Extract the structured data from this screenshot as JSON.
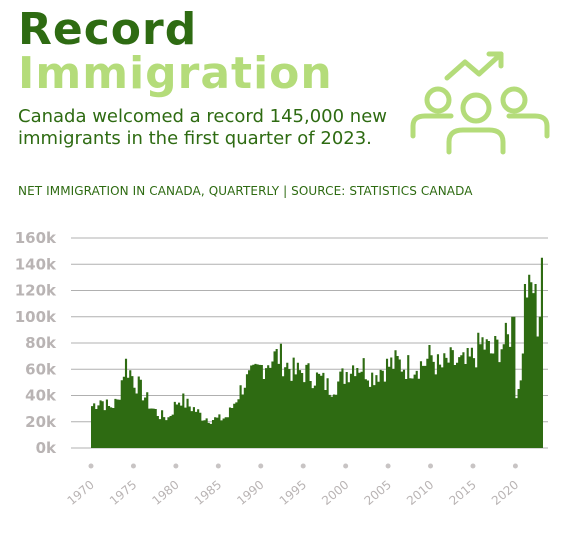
{
  "header": {
    "title_line1": "Record",
    "title_line2": "Immigration",
    "subtitle": "Canada welcomed a record 145,000 new immigrants in the first quarter of 2023.",
    "source": "NET IMMIGRATION IN CANADA, QUARTERLY | SOURCE: STATISTICS CANADA",
    "icon": "people-growth-icon"
  },
  "colors": {
    "title_dark": "#2e6b12",
    "title_light": "#b4dc7a",
    "area": "#2e6b12",
    "axis_text": "#b9b4b4",
    "grid": "#b0b0b0"
  },
  "chart_data": {
    "type": "area",
    "title": "",
    "xlabel": "",
    "ylabel": "",
    "ylim": [
      0,
      160000
    ],
    "xlim": [
      1970,
      2023.25
    ],
    "y_ticks": [
      0,
      20000,
      40000,
      60000,
      80000,
      100000,
      120000,
      140000,
      160000
    ],
    "y_tick_labels": [
      "0k",
      "20k",
      "40k",
      "60k",
      "80k",
      "100k",
      "120k",
      "140k",
      "160k"
    ],
    "x_ticks": [
      1970,
      1975,
      1980,
      1985,
      1990,
      1995,
      2000,
      2005,
      2010,
      2015,
      2020
    ],
    "x_tick_labels": [
      "1970",
      "1975",
      "1980",
      "1985",
      "1990",
      "1995",
      "2000",
      "2005",
      "2010",
      "2015",
      "2020"
    ],
    "grid": true,
    "series": [
      {
        "x": [
          1970.0,
          1971.0,
          1972.0,
          1973.0,
          1973.75,
          1974.0,
          1974.5,
          1975.0,
          1976.0,
          1977.0,
          1978.0,
          1979.0,
          1980.0,
          1980.5,
          1981.0,
          1982.0,
          1983.0,
          1984.0,
          1985.0,
          1986.0,
          1987.0,
          1988.0,
          1989.0,
          1990.0,
          1991.0,
          1992.0,
          1993.0,
          1994.0,
          1995.0,
          1996.0,
          1997.0,
          1998.0,
          1999.0,
          2000.0,
          2001.0,
          2002.0,
          2003.0,
          2004.0,
          2005.0,
          2006.0,
          2007.0,
          2008.0,
          2009.0,
          2010.0,
          2011.0,
          2012.0,
          2013.0,
          2014.0,
          2015.0,
          2016.0,
          2017.0,
          2018.0,
          2019.0,
          2019.75,
          2020.0,
          2020.25,
          2020.75,
          2021.0,
          2021.5,
          2022.0,
          2022.25,
          2022.5,
          2022.75,
          2023.0
        ],
        "y": [
          32000,
          37000,
          31000,
          35000,
          60000,
          64000,
          58000,
          52000,
          42000,
          31000,
          25000,
          23000,
          35000,
          38000,
          34000,
          30000,
          24000,
          22000,
          22000,
          24000,
          38000,
          50000,
          55000,
          62000,
          68000,
          70000,
          63000,
          57000,
          58000,
          55000,
          52000,
          46000,
          50000,
          58000,
          65000,
          62000,
          55000,
          60000,
          63000,
          65000,
          62000,
          63000,
          64000,
          70000,
          60000,
          66000,
          65000,
          63000,
          70000,
          80000,
          72000,
          78000,
          82000,
          100000,
          38000,
          45000,
          72000,
          125000,
          132000,
          118000,
          125000,
          85000,
          100000,
          145000
        ]
      }
    ]
  }
}
